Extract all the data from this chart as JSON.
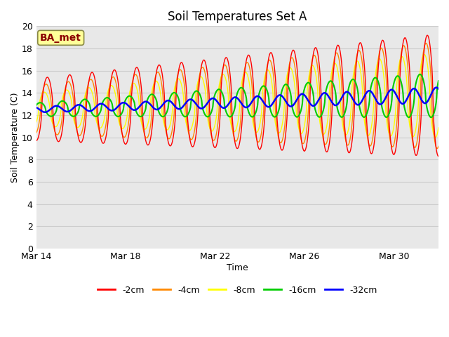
{
  "title": "Soil Temperatures Set A",
  "xlabel": "Time",
  "ylabel": "Soil Temperature (C)",
  "figure_bg_color": "#ffffff",
  "plot_bg_color": "#e8e8e8",
  "ylim": [
    0,
    20
  ],
  "yticks": [
    0,
    2,
    4,
    6,
    8,
    10,
    12,
    14,
    16,
    18,
    20
  ],
  "xtick_labels": [
    "Mar 14",
    "Mar 18",
    "Mar 22",
    "Mar 26",
    "Mar 30"
  ],
  "xtick_positions": [
    0,
    4,
    8,
    12,
    16
  ],
  "xlim": [
    0,
    18
  ],
  "legend_labels": [
    "-2cm",
    "-4cm",
    "-8cm",
    "-16cm",
    "-32cm"
  ],
  "legend_colors": [
    "#ff0000",
    "#ff8800",
    "#ffff00",
    "#00cc00",
    "#0000ff"
  ],
  "annotation_text": "BA_met",
  "annotation_color": "#8b0000",
  "annotation_bg": "#ffff99",
  "n_days": 18,
  "samples_per_day": 48,
  "trend_start": 12.5,
  "trend_end": 13.8,
  "phase_2cm": -1.5707963,
  "phase_4cm": -1.2,
  "phase_8cm": -0.7,
  "phase_16cm": 0.5,
  "phase_32cm": 2.2,
  "amp_2cm_start": 2.8,
  "amp_2cm_end": 5.5,
  "amp_4cm_start": 2.2,
  "amp_4cm_end": 4.8,
  "amp_8cm_start": 1.5,
  "amp_8cm_end": 3.8,
  "amp_16cm_start": 0.6,
  "amp_16cm_end": 2.0,
  "amp_32cm_start": 0.25,
  "amp_32cm_end": 0.7,
  "grid_color": "#cccccc",
  "tick_fontsize": 9,
  "label_fontsize": 9,
  "title_fontsize": 12
}
